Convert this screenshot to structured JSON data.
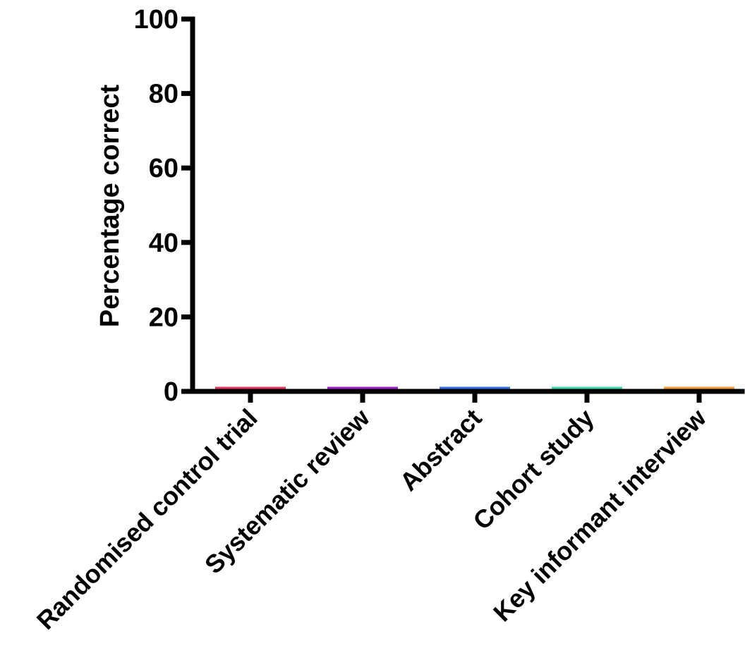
{
  "chart_data": {
    "type": "bar",
    "title": "",
    "xlabel": "",
    "ylabel": "Percentage correct",
    "ylim": [
      0,
      100
    ],
    "yticks": [
      0,
      20,
      40,
      60,
      80,
      100
    ],
    "categories": [
      "Randomised control trial",
      "Systematic review",
      "Abstract",
      "Cohort study",
      "Key informant interview"
    ],
    "values": [
      0,
      0,
      0,
      0,
      0
    ],
    "colors": [
      "#e8365a",
      "#a020c8",
      "#2f6fe0",
      "#3fd9b0",
      "#f59a3a"
    ],
    "grid": false,
    "legend": "none"
  }
}
